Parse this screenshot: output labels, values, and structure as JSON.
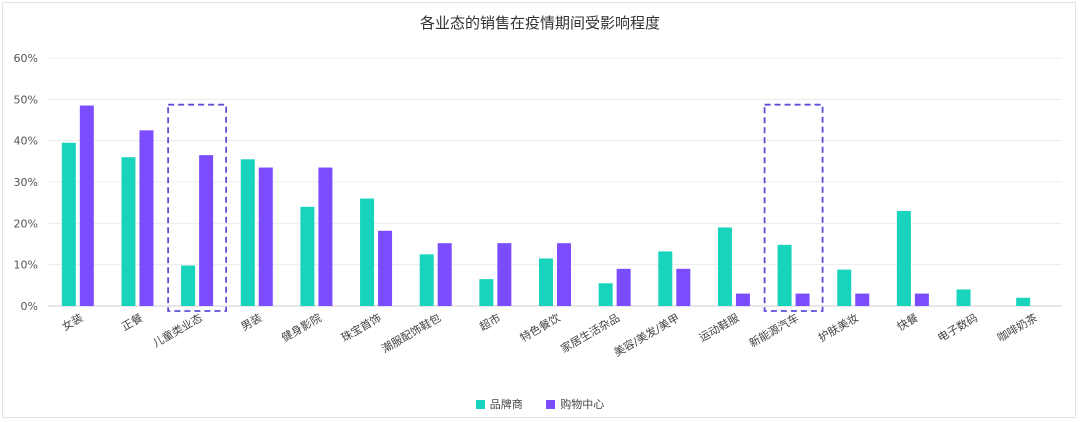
{
  "chart_data": {
    "type": "bar",
    "title": "各业态的销售在疫情期间受影响程度",
    "categories": [
      "女装",
      "正餐",
      "儿童类业态",
      "男装",
      "健身影院",
      "珠宝首饰",
      "潮服配饰鞋包",
      "超市",
      "特色餐饮",
      "家居生活杂品",
      "美容/美发/美甲",
      "运动鞋服",
      "新能源汽车",
      "护肤美妆",
      "快餐",
      "电子数码",
      "咖啡奶茶"
    ],
    "series": [
      {
        "name": "品牌商",
        "color": "#19d4bd",
        "values": [
          39.5,
          36,
          9.8,
          35.5,
          24,
          26,
          12.5,
          6.5,
          11.5,
          5.5,
          13.2,
          19,
          14.8,
          8.8,
          23,
          4,
          2
        ]
      },
      {
        "name": "购物中心",
        "color": "#7c4dff",
        "values": [
          48.5,
          42.5,
          36.5,
          33.5,
          33.5,
          18.2,
          15.2,
          15.2,
          15.2,
          9,
          9,
          3,
          3,
          3,
          3,
          null,
          null
        ]
      }
    ],
    "yticks": [
      "0%",
      "10%",
      "20%",
      "30%",
      "40%",
      "50%",
      "60%"
    ],
    "ylim": [
      0,
      60
    ],
    "highlighted_categories": [
      "儿童类业态",
      "新能源汽车"
    ],
    "highlight_color": "#5b4fd6",
    "grid": true,
    "legend_position": "bottom-center"
  }
}
